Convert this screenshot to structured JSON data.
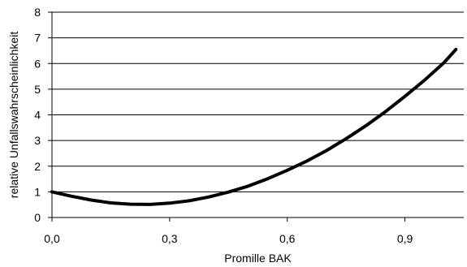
{
  "chart_data": {
    "type": "line",
    "title": "",
    "xlabel": "Promille BAK",
    "ylabel": "relative Unfallswahrscheinlichkeit",
    "xlim": [
      0,
      1.05
    ],
    "ylim": [
      0,
      8
    ],
    "x_ticks": [
      0,
      0.3,
      0.6,
      0.9
    ],
    "x_tick_labels": [
      "0,0",
      "0,3",
      "0,6",
      "0,9"
    ],
    "y_ticks": [
      0,
      1,
      2,
      3,
      4,
      5,
      6,
      7,
      8
    ],
    "y_tick_labels": [
      "0",
      "1",
      "2",
      "3",
      "4",
      "5",
      "6",
      "7",
      "8"
    ],
    "grid": "horizontal",
    "legend": "none",
    "series": [
      {
        "color": "#000000",
        "x": [
          0.0,
          0.05,
          0.1,
          0.15,
          0.2,
          0.25,
          0.3,
          0.35,
          0.4,
          0.45,
          0.5,
          0.55,
          0.6,
          0.65,
          0.7,
          0.75,
          0.8,
          0.85,
          0.9,
          0.95,
          1.0,
          1.03
        ],
        "y": [
          1.0,
          0.83,
          0.68,
          0.57,
          0.52,
          0.51,
          0.56,
          0.65,
          0.8,
          0.99,
          1.22,
          1.51,
          1.84,
          2.2,
          2.61,
          3.07,
          3.57,
          4.12,
          4.72,
          5.35,
          6.04,
          6.55
        ]
      }
    ]
  }
}
